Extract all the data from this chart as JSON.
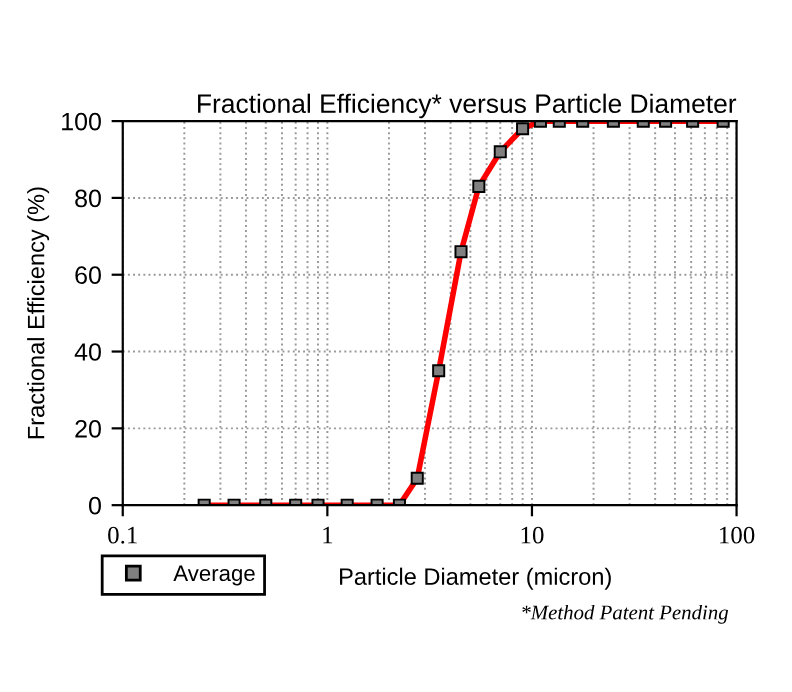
{
  "chart_data": {
    "type": "line",
    "title": "Fractional Efficiency* versus Particle Diameter",
    "xlabel": "Particle Diameter (micron)",
    "ylabel": "Fractional Efficiency (%)",
    "annotations": [
      "*Method Patent Pending"
    ],
    "x": [
      0.25,
      0.35,
      0.5,
      0.7,
      0.9,
      1.25,
      1.75,
      2.25,
      2.75,
      3.5,
      4.5,
      5.5,
      7,
      9,
      11,
      13.6,
      17.7,
      25,
      35,
      45,
      61,
      86
    ],
    "series": [
      {
        "name": "Average",
        "color": "#ff0000",
        "values": [
          0,
          0,
          0,
          0,
          0,
          0,
          0,
          0,
          7,
          35,
          66,
          83,
          92,
          98,
          100,
          100,
          100,
          100,
          100,
          100,
          100,
          100
        ]
      }
    ],
    "log": "x",
    "xlim": [
      0.1,
      100
    ],
    "xticks": [
      0.1,
      1,
      10,
      100
    ],
    "ylim": [
      0,
      100
    ],
    "yticks": [
      0,
      20,
      40,
      60,
      80,
      100
    ],
    "grid": true,
    "legend": "bottom left",
    "marker": "square",
    "line_style": "solid"
  }
}
